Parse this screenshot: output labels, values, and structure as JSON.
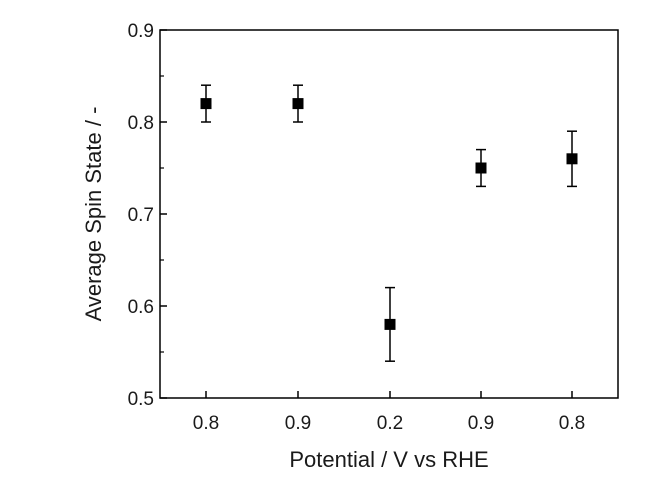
{
  "chart_data": {
    "type": "scatter",
    "xlabel": "Potential / V vs RHE",
    "ylabel": "Average Spin State / -",
    "categories": [
      "0.8",
      "0.9",
      "0.2",
      "0.9",
      "0.8"
    ],
    "series": [
      {
        "values": [
          0.82,
          0.82,
          0.58,
          0.75,
          0.76
        ],
        "errors": [
          0.02,
          0.02,
          0.04,
          0.02,
          0.03
        ]
      }
    ],
    "ylim": [
      0.5,
      0.9
    ],
    "yticks": [
      "0.5",
      "0.6",
      "0.7",
      "0.8",
      "0.9"
    ],
    "grid": false,
    "marker": "square",
    "colors": {
      "marker": "#000000",
      "axis": "#000000"
    }
  }
}
